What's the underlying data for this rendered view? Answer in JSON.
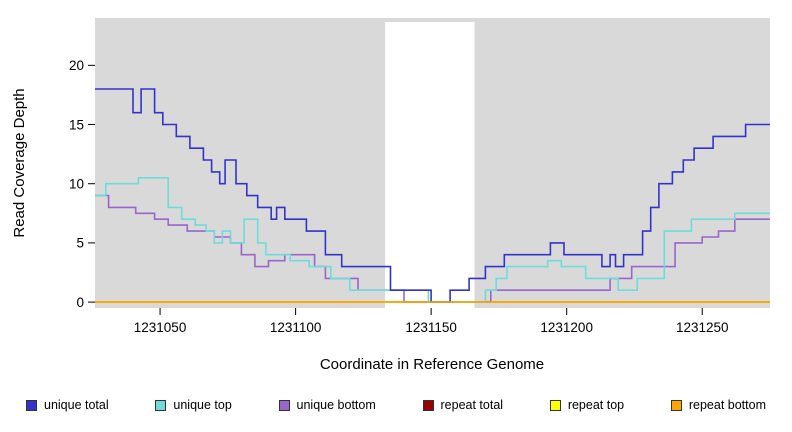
{
  "chart_data": {
    "type": "line",
    "step": true,
    "title": "",
    "xlabel": "Coordinate in Reference Genome",
    "ylabel": "Read Coverage Depth",
    "xlim": [
      1231026,
      1231275
    ],
    "ylim": [
      -0.5,
      24
    ],
    "xticks": [
      1231050,
      1231100,
      1231150,
      1231200,
      1231250
    ],
    "yticks": [
      0,
      5,
      10,
      15,
      20
    ],
    "grid": false,
    "legend_position": "bottom",
    "background": {
      "shaded_color": "#d9d9d9",
      "shaded_regions": [
        [
          1231026,
          1231133
        ],
        [
          1231166,
          1231275
        ]
      ],
      "gap_region": [
        1231133,
        1231166
      ]
    },
    "series": [
      {
        "name": "repeat total",
        "color": "#990000",
        "points": [
          [
            1231026,
            0
          ]
        ]
      },
      {
        "name": "repeat top",
        "color": "#ffff00",
        "points": [
          [
            1231026,
            0
          ]
        ]
      },
      {
        "name": "unique bottom",
        "color": "#9966cc",
        "points": [
          [
            1231026,
            9
          ],
          [
            1231031,
            8
          ],
          [
            1231041,
            7.5
          ],
          [
            1231048,
            7
          ],
          [
            1231053,
            6.5
          ],
          [
            1231060,
            6
          ],
          [
            1231070,
            5.5
          ],
          [
            1231076,
            5
          ],
          [
            1231080,
            4
          ],
          [
            1231085,
            3
          ],
          [
            1231090,
            3.5
          ],
          [
            1231096,
            4
          ],
          [
            1231107,
            3
          ],
          [
            1231111,
            2
          ],
          [
            1231123,
            1
          ],
          [
            1231140,
            0
          ],
          [
            1231172,
            1
          ],
          [
            1231216,
            2
          ],
          [
            1231224,
            3
          ],
          [
            1231240,
            5
          ],
          [
            1231250,
            5.5
          ],
          [
            1231256,
            6
          ],
          [
            1231262,
            7
          ]
        ]
      },
      {
        "name": "unique top",
        "color": "#70dbdb",
        "points": [
          [
            1231026,
            9
          ],
          [
            1231030,
            10
          ],
          [
            1231042,
            10.5
          ],
          [
            1231053,
            8
          ],
          [
            1231058,
            7
          ],
          [
            1231063,
            6.5
          ],
          [
            1231067,
            6
          ],
          [
            1231070,
            5
          ],
          [
            1231073,
            6
          ],
          [
            1231076,
            5
          ],
          [
            1231081,
            7
          ],
          [
            1231086,
            5
          ],
          [
            1231089,
            4
          ],
          [
            1231098,
            3.5
          ],
          [
            1231105,
            3
          ],
          [
            1231113,
            2
          ],
          [
            1231120,
            1
          ],
          [
            1231149,
            0
          ],
          [
            1231170,
            1
          ],
          [
            1231174,
            2
          ],
          [
            1231178,
            3
          ],
          [
            1231193,
            3.5
          ],
          [
            1231198,
            3
          ],
          [
            1231207,
            2
          ],
          [
            1231219,
            1
          ],
          [
            1231226,
            2
          ],
          [
            1231236,
            6
          ],
          [
            1231246,
            7
          ],
          [
            1231262,
            7.5
          ]
        ]
      },
      {
        "name": "unique total",
        "color": "#3333cc",
        "points": [
          [
            1231026,
            18
          ],
          [
            1231040,
            16
          ],
          [
            1231043,
            18
          ],
          [
            1231048,
            16
          ],
          [
            1231051,
            15
          ],
          [
            1231056,
            14
          ],
          [
            1231061,
            13
          ],
          [
            1231066,
            12
          ],
          [
            1231069,
            11
          ],
          [
            1231072,
            10
          ],
          [
            1231074,
            12
          ],
          [
            1231078,
            10
          ],
          [
            1231082,
            9
          ],
          [
            1231086,
            8
          ],
          [
            1231091,
            7
          ],
          [
            1231093,
            8
          ],
          [
            1231096,
            7
          ],
          [
            1231104,
            6
          ],
          [
            1231111,
            4
          ],
          [
            1231117,
            3
          ],
          [
            1231135,
            1
          ],
          [
            1231150,
            0
          ],
          [
            1231157,
            1
          ],
          [
            1231164,
            2
          ],
          [
            1231170,
            3
          ],
          [
            1231177,
            4
          ],
          [
            1231194,
            5
          ],
          [
            1231199,
            4
          ],
          [
            1231213,
            3
          ],
          [
            1231216,
            4
          ],
          [
            1231218,
            3
          ],
          [
            1231221,
            4
          ],
          [
            1231228,
            6
          ],
          [
            1231231,
            8
          ],
          [
            1231234,
            10
          ],
          [
            1231239,
            11
          ],
          [
            1231243,
            12
          ],
          [
            1231247,
            13
          ],
          [
            1231254,
            14
          ],
          [
            1231266,
            15
          ]
        ]
      },
      {
        "name": "repeat bottom",
        "color": "#ffa500",
        "points": [
          [
            1231026,
            0
          ]
        ]
      }
    ]
  },
  "legend": {
    "items": [
      {
        "label": "unique total",
        "color": "#3333cc"
      },
      {
        "label": "unique top",
        "color": "#70dbdb"
      },
      {
        "label": "unique bottom",
        "color": "#9966cc"
      },
      {
        "label": "repeat total",
        "color": "#990000"
      },
      {
        "label": "repeat top",
        "color": "#ffff00"
      },
      {
        "label": "repeat bottom",
        "color": "#ffa500"
      }
    ]
  },
  "axes": {
    "x_title": "Coordinate in Reference Genome",
    "y_title": "Read Coverage Depth"
  }
}
